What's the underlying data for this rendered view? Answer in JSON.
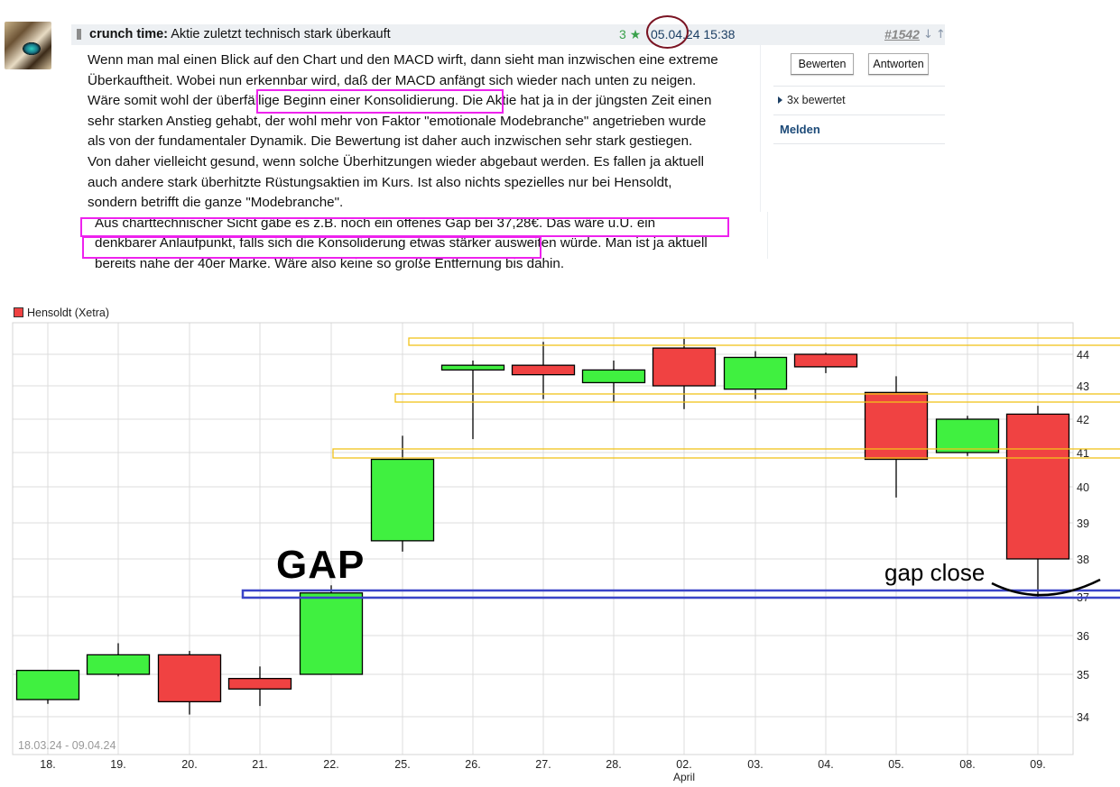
{
  "post": {
    "author": "crunch time:",
    "title": "Aktie zuletzt technisch stark überkauft",
    "rating_count": "3",
    "rating_icon": "star-icon",
    "timestamp": "05.04.24 15:38",
    "post_number": "#1542",
    "nav_down": "↓",
    "nav_up": "↑",
    "paragraph1": "Wenn man mal einen Blick auf den Chart und den MACD wirft, dann sieht man inzwischen eine extreme Überkauftheit. Wobei nun erkennbar wird, daß der MACD anfängt sich wieder nach unten zu neigen. Wäre somit wohl der überfällige Beginn einer Konsolidierung. Die Aktie hat ja in der jüngsten Zeit einen sehr starken Anstieg gehabt, der wohl mehr von Faktor \"emotionale Modebranche\" angetrieben wurde als von der fundamentaler Dynamik. Die Bewertung ist daher auch inzwischen sehr stark gestiegen. Von daher vielleicht gesund, wenn solche Überhitzungen wieder abgebaut werden. Es fallen ja aktuell auch andere stark überhitzte Rüstungsaktien im Kurs. Ist also nichts spezielles nur bei Hensoldt, sondern betrifft die ganze \"Modebranche\".",
    "paragraph2": "Aus charttechnischer Sicht gäbe es z.B. noch ein offenes Gap bei 37,28€. Das wäre u.U. ein denkbarer Anlaufpunkt, falls sich die Konsoliderung etwas stärker ausweiten würde. Man ist ja aktuell bereits nahe der 40er Marke. Wäre also keine so große Entfernung bis dahin."
  },
  "sidebar": {
    "rate_button": "Bewerten",
    "reply_button": "Antworten",
    "rated_label": "3x bewertet",
    "report_link": "Melden"
  },
  "annotations": {
    "gap_label": "GAP",
    "gap_close_label": "gap close",
    "highlight_color": "#ee22ee",
    "date_circle_color": "#7a1423",
    "gap_line_color": "#3a44c8",
    "resistance_line_color": "#f2c21b"
  },
  "chart_data": {
    "type": "candlestick",
    "title": "",
    "legend": [
      "Hensoldt (Xetra)"
    ],
    "legend_position": "top-left",
    "date_range_label": "18.03.24 - 09.04.24",
    "xlabel": "",
    "ylabel": "",
    "x_month_label": "April",
    "categories": [
      "18.",
      "19.",
      "20.",
      "21.",
      "22.",
      "25.",
      "26.",
      "27.",
      "28.",
      "02.",
      "03.",
      "04.",
      "05.",
      "08.",
      "09."
    ],
    "open": [
      34.4,
      35.0,
      35.5,
      34.9,
      35.0,
      38.5,
      43.5,
      43.65,
      43.1,
      44.2,
      42.9,
      44.0,
      42.8,
      41.0,
      42.15
    ],
    "high": [
      35.1,
      35.8,
      35.6,
      35.2,
      37.3,
      41.5,
      43.8,
      44.4,
      43.8,
      44.5,
      44.1,
      44.05,
      43.3,
      42.1,
      42.4
    ],
    "low": [
      34.3,
      34.95,
      34.05,
      34.25,
      35.0,
      38.2,
      41.4,
      42.6,
      42.5,
      42.3,
      42.6,
      43.4,
      39.7,
      40.9,
      37.0
    ],
    "close": [
      35.1,
      35.5,
      34.35,
      34.65,
      37.1,
      40.8,
      43.65,
      43.35,
      43.5,
      43.0,
      43.9,
      43.6,
      40.8,
      42.0,
      38.0
    ],
    "y_ticks": [
      34,
      35,
      36,
      37,
      38,
      39,
      40,
      41,
      42,
      43,
      44
    ],
    "ylim": [
      33.6,
      44.8
    ],
    "grid": true,
    "up_color": "#40f040",
    "down_color": "#f04242",
    "annotation_lines": [
      {
        "type": "gap",
        "price": 37.05,
        "color": "#3a44c8"
      },
      {
        "type": "zone",
        "price_low": 41.0,
        "price_high": 41.1,
        "color": "#f2c21b"
      },
      {
        "type": "zone",
        "price_low": 42.55,
        "price_high": 42.7,
        "color": "#f2c21b"
      },
      {
        "type": "zone",
        "price_low": 44.3,
        "price_high": 44.45,
        "color": "#f2c21b"
      }
    ]
  }
}
